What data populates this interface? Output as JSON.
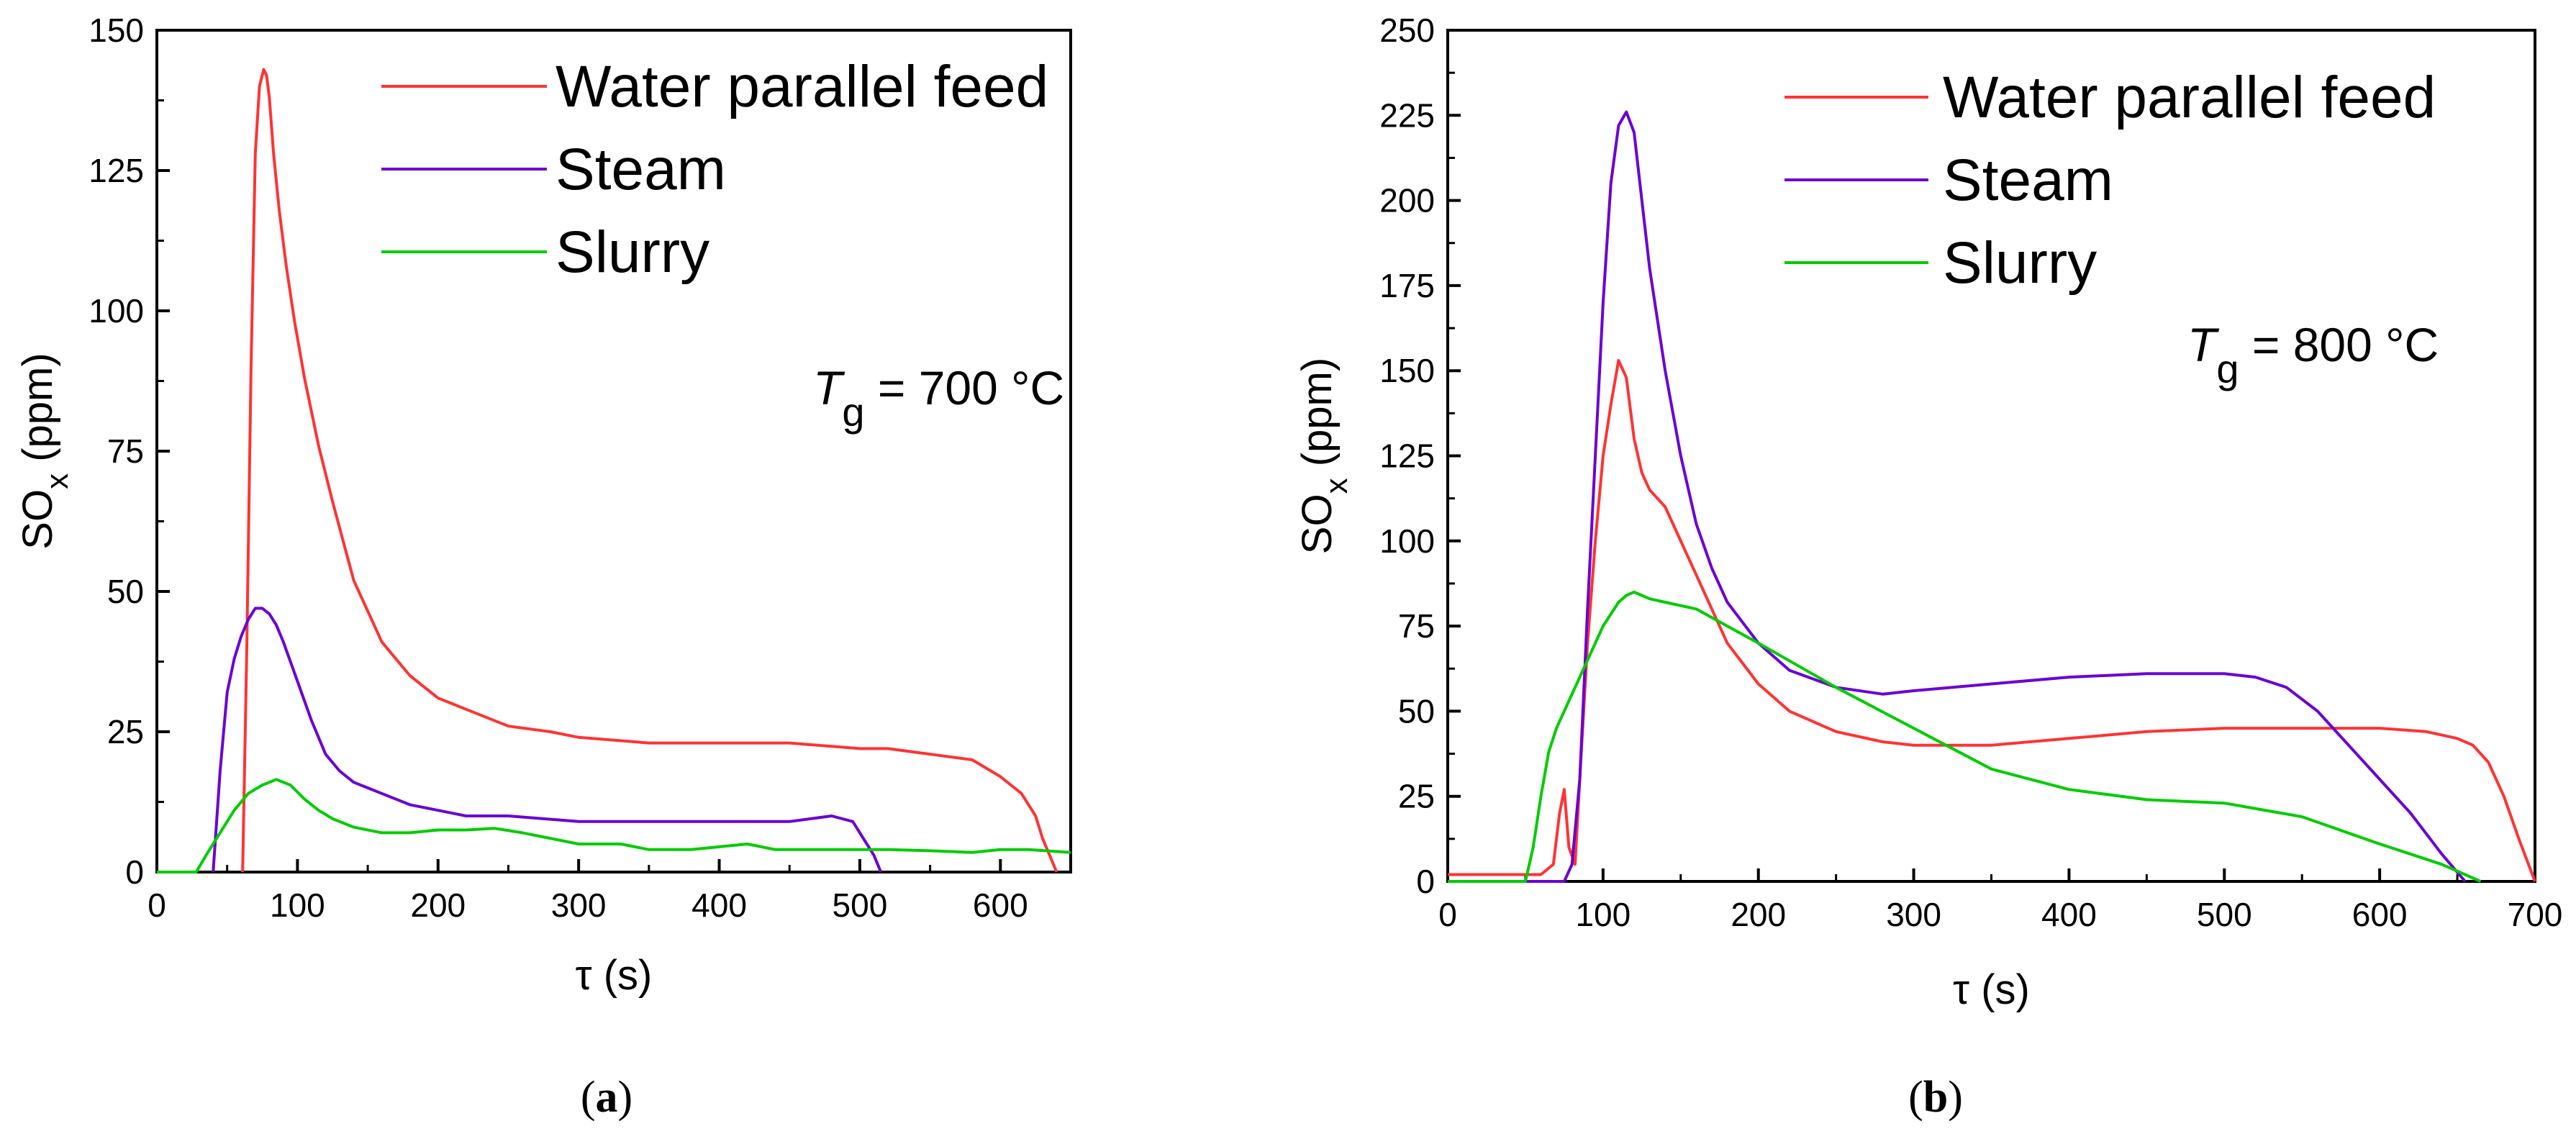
{
  "chart_data": [
    {
      "type": "line",
      "panel_label": "a",
      "xlabel": "τ (s)",
      "ylabel": "SO",
      "ylabel_subscript": "x",
      "ylabel_unit": "(ppm)",
      "xlim": [
        0,
        650
      ],
      "ylim": [
        0,
        150
      ],
      "xticks": [
        0,
        100,
        200,
        300,
        400,
        500,
        600
      ],
      "yticks": [
        0,
        25,
        50,
        75,
        100,
        125,
        150
      ],
      "legend_position": "top-right",
      "annotation": {
        "symbol": "T",
        "subscript": "g",
        "text": " = 700 °C"
      },
      "series": [
        {
          "name": "Water parallel feed",
          "color": "#ff3333",
          "x": [
            61,
            64,
            67,
            70,
            73,
            76,
            78,
            80,
            83,
            87,
            92,
            98,
            105,
            115,
            125,
            140,
            160,
            180,
            200,
            220,
            250,
            280,
            300,
            350,
            400,
            450,
            500,
            520,
            550,
            580,
            600,
            615,
            625,
            630,
            635,
            640
          ],
          "y": [
            0,
            40,
            90,
            128,
            140,
            143,
            142,
            138,
            128,
            118,
            108,
            98,
            88,
            76,
            66,
            52,
            41,
            35,
            31,
            29,
            26,
            25,
            24,
            23,
            23,
            23,
            22,
            22,
            21,
            20,
            17,
            14,
            10,
            6,
            3,
            0
          ]
        },
        {
          "name": "Steam",
          "color": "#6a00d4",
          "x": [
            40,
            45,
            50,
            55,
            60,
            65,
            70,
            75,
            80,
            85,
            90,
            100,
            110,
            120,
            130,
            140,
            150,
            160,
            180,
            200,
            220,
            250,
            300,
            350,
            400,
            450,
            480,
            495,
            500,
            505,
            510,
            515
          ],
          "y": [
            0,
            18,
            32,
            38,
            42,
            45,
            47,
            47,
            46,
            44,
            41,
            34,
            27,
            21,
            18,
            16,
            15,
            14,
            12,
            11,
            10,
            10,
            9,
            9,
            9,
            9,
            10,
            9,
            7,
            5,
            3,
            0
          ]
        },
        {
          "name": "Slurry",
          "color": "#00cc00",
          "x": [
            0,
            28,
            35,
            45,
            55,
            65,
            75,
            85,
            95,
            105,
            115,
            125,
            140,
            160,
            180,
            200,
            220,
            240,
            260,
            280,
            300,
            330,
            350,
            380,
            400,
            420,
            440,
            460,
            480,
            500,
            520,
            550,
            580,
            600,
            620,
            650
          ],
          "y": [
            0,
            0,
            3,
            7,
            11,
            14,
            15.5,
            16.5,
            15.5,
            13,
            11,
            9.5,
            8,
            7,
            7,
            7.5,
            7.5,
            7.8,
            7,
            6,
            5,
            5,
            4,
            4,
            4.5,
            5,
            4,
            4,
            4,
            4,
            4,
            3.8,
            3.5,
            4,
            4,
            3.5
          ]
        }
      ]
    },
    {
      "type": "line",
      "panel_label": "b",
      "xlabel": "τ (s)",
      "ylabel": "SO",
      "ylabel_subscript": "x",
      "ylabel_unit": "(ppm)",
      "xlim": [
        0,
        700
      ],
      "ylim": [
        0,
        250
      ],
      "xticks": [
        0,
        100,
        200,
        300,
        400,
        500,
        600,
        700
      ],
      "yticks": [
        0,
        25,
        50,
        75,
        100,
        125,
        150,
        175,
        200,
        225,
        250
      ],
      "legend_position": "top-right",
      "annotation": {
        "symbol": "T",
        "subscript": "g",
        "text": " = 800 °C"
      },
      "series": [
        {
          "name": "Water parallel feed",
          "color": "#ff3333",
          "x": [
            0,
            60,
            68,
            72,
            75,
            78,
            82,
            85,
            90,
            95,
            100,
            105,
            110,
            115,
            120,
            125,
            130,
            140,
            150,
            160,
            170,
            180,
            200,
            220,
            250,
            280,
            300,
            350,
            400,
            450,
            500,
            550,
            600,
            630,
            650,
            660,
            670,
            680,
            690,
            700
          ],
          "y": [
            2,
            2,
            5,
            20,
            27,
            10,
            5,
            30,
            70,
            100,
            125,
            140,
            153,
            148,
            130,
            120,
            115,
            110,
            100,
            90,
            80,
            70,
            58,
            50,
            44,
            41,
            40,
            40,
            42,
            44,
            45,
            45,
            45,
            44,
            42,
            40,
            35,
            25,
            12,
            0
          ]
        },
        {
          "name": "Steam",
          "color": "#6a00d4",
          "x": [
            0,
            75,
            80,
            85,
            90,
            95,
            100,
            105,
            110,
            115,
            120,
            125,
            130,
            140,
            150,
            160,
            170,
            180,
            200,
            220,
            250,
            280,
            300,
            350,
            400,
            450,
            500,
            520,
            540,
            560,
            580,
            600,
            620,
            640,
            655
          ],
          "y": [
            0,
            0,
            5,
            30,
            80,
            125,
            170,
            205,
            222,
            226,
            220,
            200,
            180,
            150,
            125,
            105,
            92,
            82,
            70,
            62,
            57,
            55,
            56,
            58,
            60,
            61,
            61,
            60,
            57,
            50,
            40,
            30,
            20,
            8,
            0
          ]
        },
        {
          "name": "Slurry",
          "color": "#00cc00",
          "x": [
            0,
            50,
            55,
            60,
            65,
            70,
            80,
            90,
            100,
            110,
            115,
            120,
            125,
            130,
            140,
            160,
            180,
            200,
            250,
            300,
            350,
            400,
            450,
            500,
            550,
            600,
            640,
            665
          ],
          "y": [
            0,
            0,
            10,
            25,
            38,
            45,
            55,
            65,
            75,
            82,
            84,
            85,
            84,
            83,
            82,
            80,
            75,
            70,
            57,
            45,
            33,
            27,
            24,
            23,
            19,
            11,
            5,
            0
          ]
        }
      ]
    }
  ]
}
